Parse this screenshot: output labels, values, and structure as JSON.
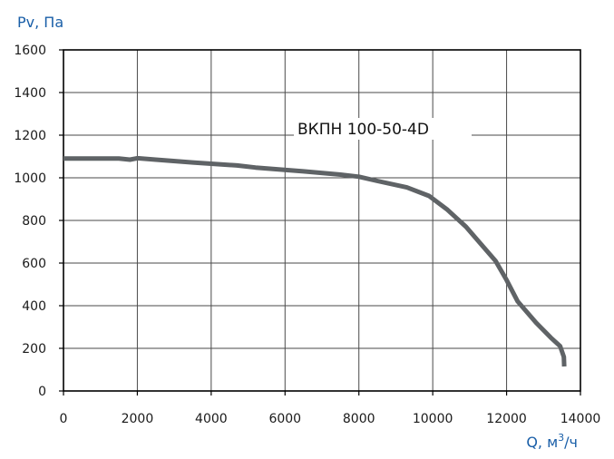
{
  "chart_data": {
    "type": "line",
    "title": "",
    "xlabel": "Q, м³/ч",
    "ylabel": "Pv, Па",
    "xlim": [
      0,
      14000
    ],
    "ylim": [
      0,
      1600
    ],
    "x_ticks": [
      0,
      2000,
      4000,
      6000,
      8000,
      10000,
      12000,
      14000
    ],
    "y_ticks": [
      0,
      200,
      400,
      600,
      800,
      1000,
      1200,
      1400,
      1600
    ],
    "grid": true,
    "legend": "none",
    "series": [
      {
        "name": "ВКПН 100-50-4D",
        "color": "#5f6366",
        "x": [
          0,
          1500,
          1800,
          2000,
          2500,
          3500,
          4700,
          5200,
          6500,
          7500,
          8000,
          8500,
          9300,
          9900,
          10400,
          10900,
          11200,
          11700,
          12000,
          12300,
          12800,
          13200,
          13450,
          13550,
          13560
        ],
        "y": [
          1090,
          1090,
          1085,
          1092,
          1085,
          1072,
          1058,
          1048,
          1030,
          1015,
          1005,
          985,
          955,
          915,
          850,
          770,
          710,
          610,
          520,
          420,
          320,
          250,
          210,
          160,
          115
        ]
      }
    ]
  }
}
